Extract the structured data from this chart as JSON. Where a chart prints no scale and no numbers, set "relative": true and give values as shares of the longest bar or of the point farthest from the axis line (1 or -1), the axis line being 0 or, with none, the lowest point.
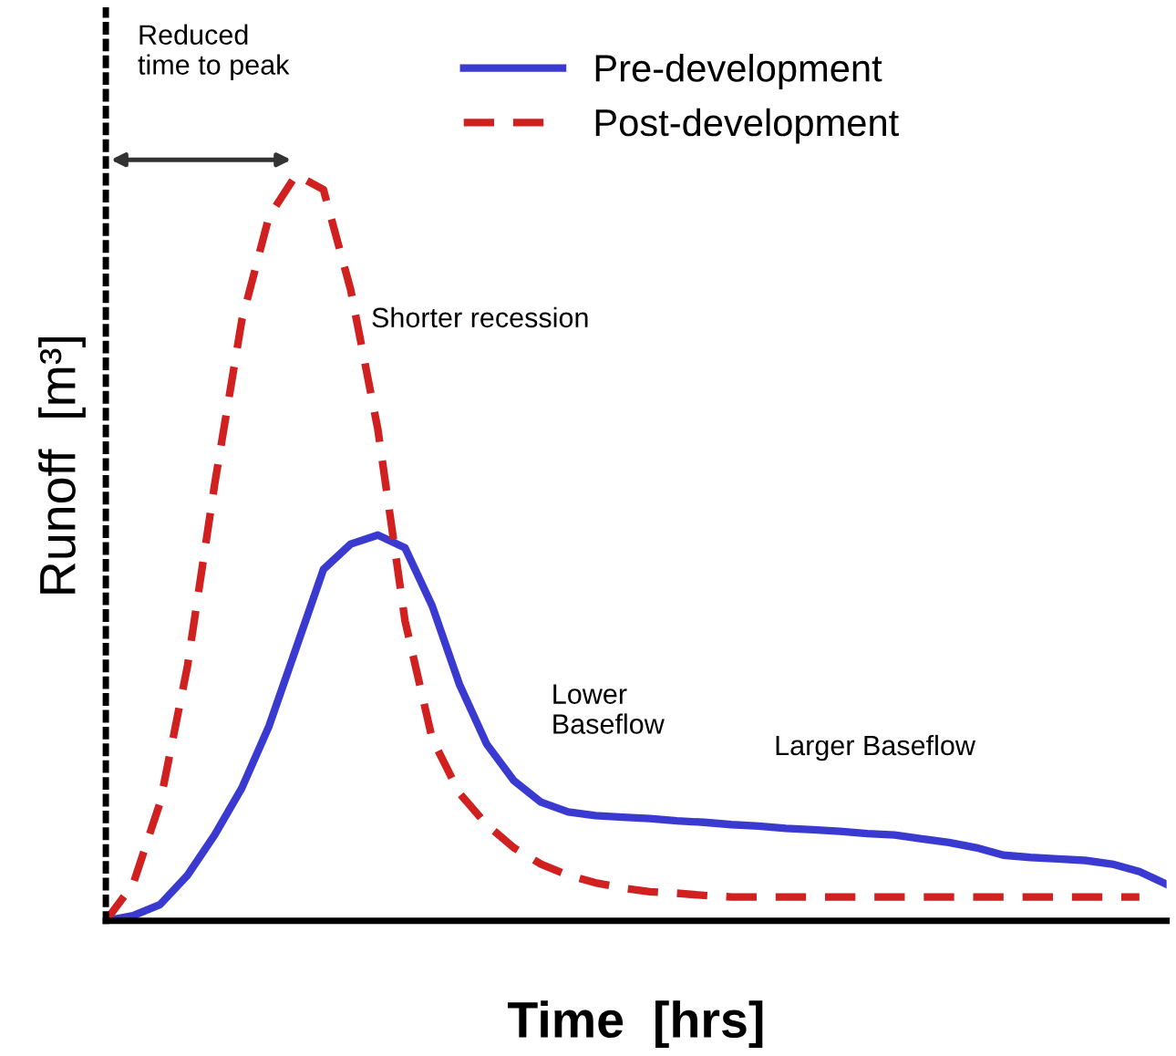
{
  "chart_data": {
    "type": "line",
    "relative": true,
    "xlabel": "Time  [hrs]",
    "ylabel": "Runoff  [m³]",
    "legend": "top right",
    "grid": false,
    "categories": [
      null,
      null,
      null,
      null,
      null,
      null,
      null,
      null,
      null,
      null,
      null,
      null,
      null,
      null,
      null,
      null,
      null,
      null,
      null,
      null,
      null,
      null,
      null,
      null,
      null,
      null,
      null,
      null,
      null,
      null,
      null,
      null,
      null,
      null,
      null,
      null,
      null,
      null,
      null,
      null
    ],
    "series": [
      {
        "name": "Pre-development",
        "color": "#3a3ad0",
        "line_style": "solid",
        "values": [
          0,
          0.007,
          0.022,
          0.061,
          0.115,
          0.178,
          0.261,
          0.366,
          0.471,
          0.505,
          0.517,
          0.5,
          0.422,
          0.317,
          0.237,
          0.188,
          0.159,
          0.146,
          0.141,
          0.139,
          0.137,
          0.134,
          0.132,
          0.129,
          0.127,
          0.124,
          0.122,
          0.12,
          0.117,
          0.115,
          0.11,
          0.105,
          0.098,
          0.088,
          0.085,
          0.083,
          0.081,
          0.076,
          0.066,
          0.049
        ]
      },
      {
        "name": "Post-development",
        "color": "#d02020",
        "line_style": "dashed",
        "values": [
          0,
          0.049,
          0.159,
          0.341,
          0.585,
          0.805,
          0.944,
          1,
          0.98,
          0.846,
          0.659,
          0.402,
          0.244,
          0.171,
          0.129,
          0.098,
          0.076,
          0.061,
          0.051,
          0.044,
          0.039,
          0.037,
          0.034,
          0.032,
          0.032,
          0.032,
          0.032,
          0.032,
          0.032,
          0.032,
          0.032,
          0.032,
          0.032,
          0.032,
          0.032,
          0.032,
          0.032,
          0.032,
          0.032,
          null
        ]
      }
    ],
    "annotations": [
      "Reduced\ntime to peak",
      "Shorter recession",
      "Lower\nBaseflow",
      "Larger Baseflow"
    ]
  }
}
